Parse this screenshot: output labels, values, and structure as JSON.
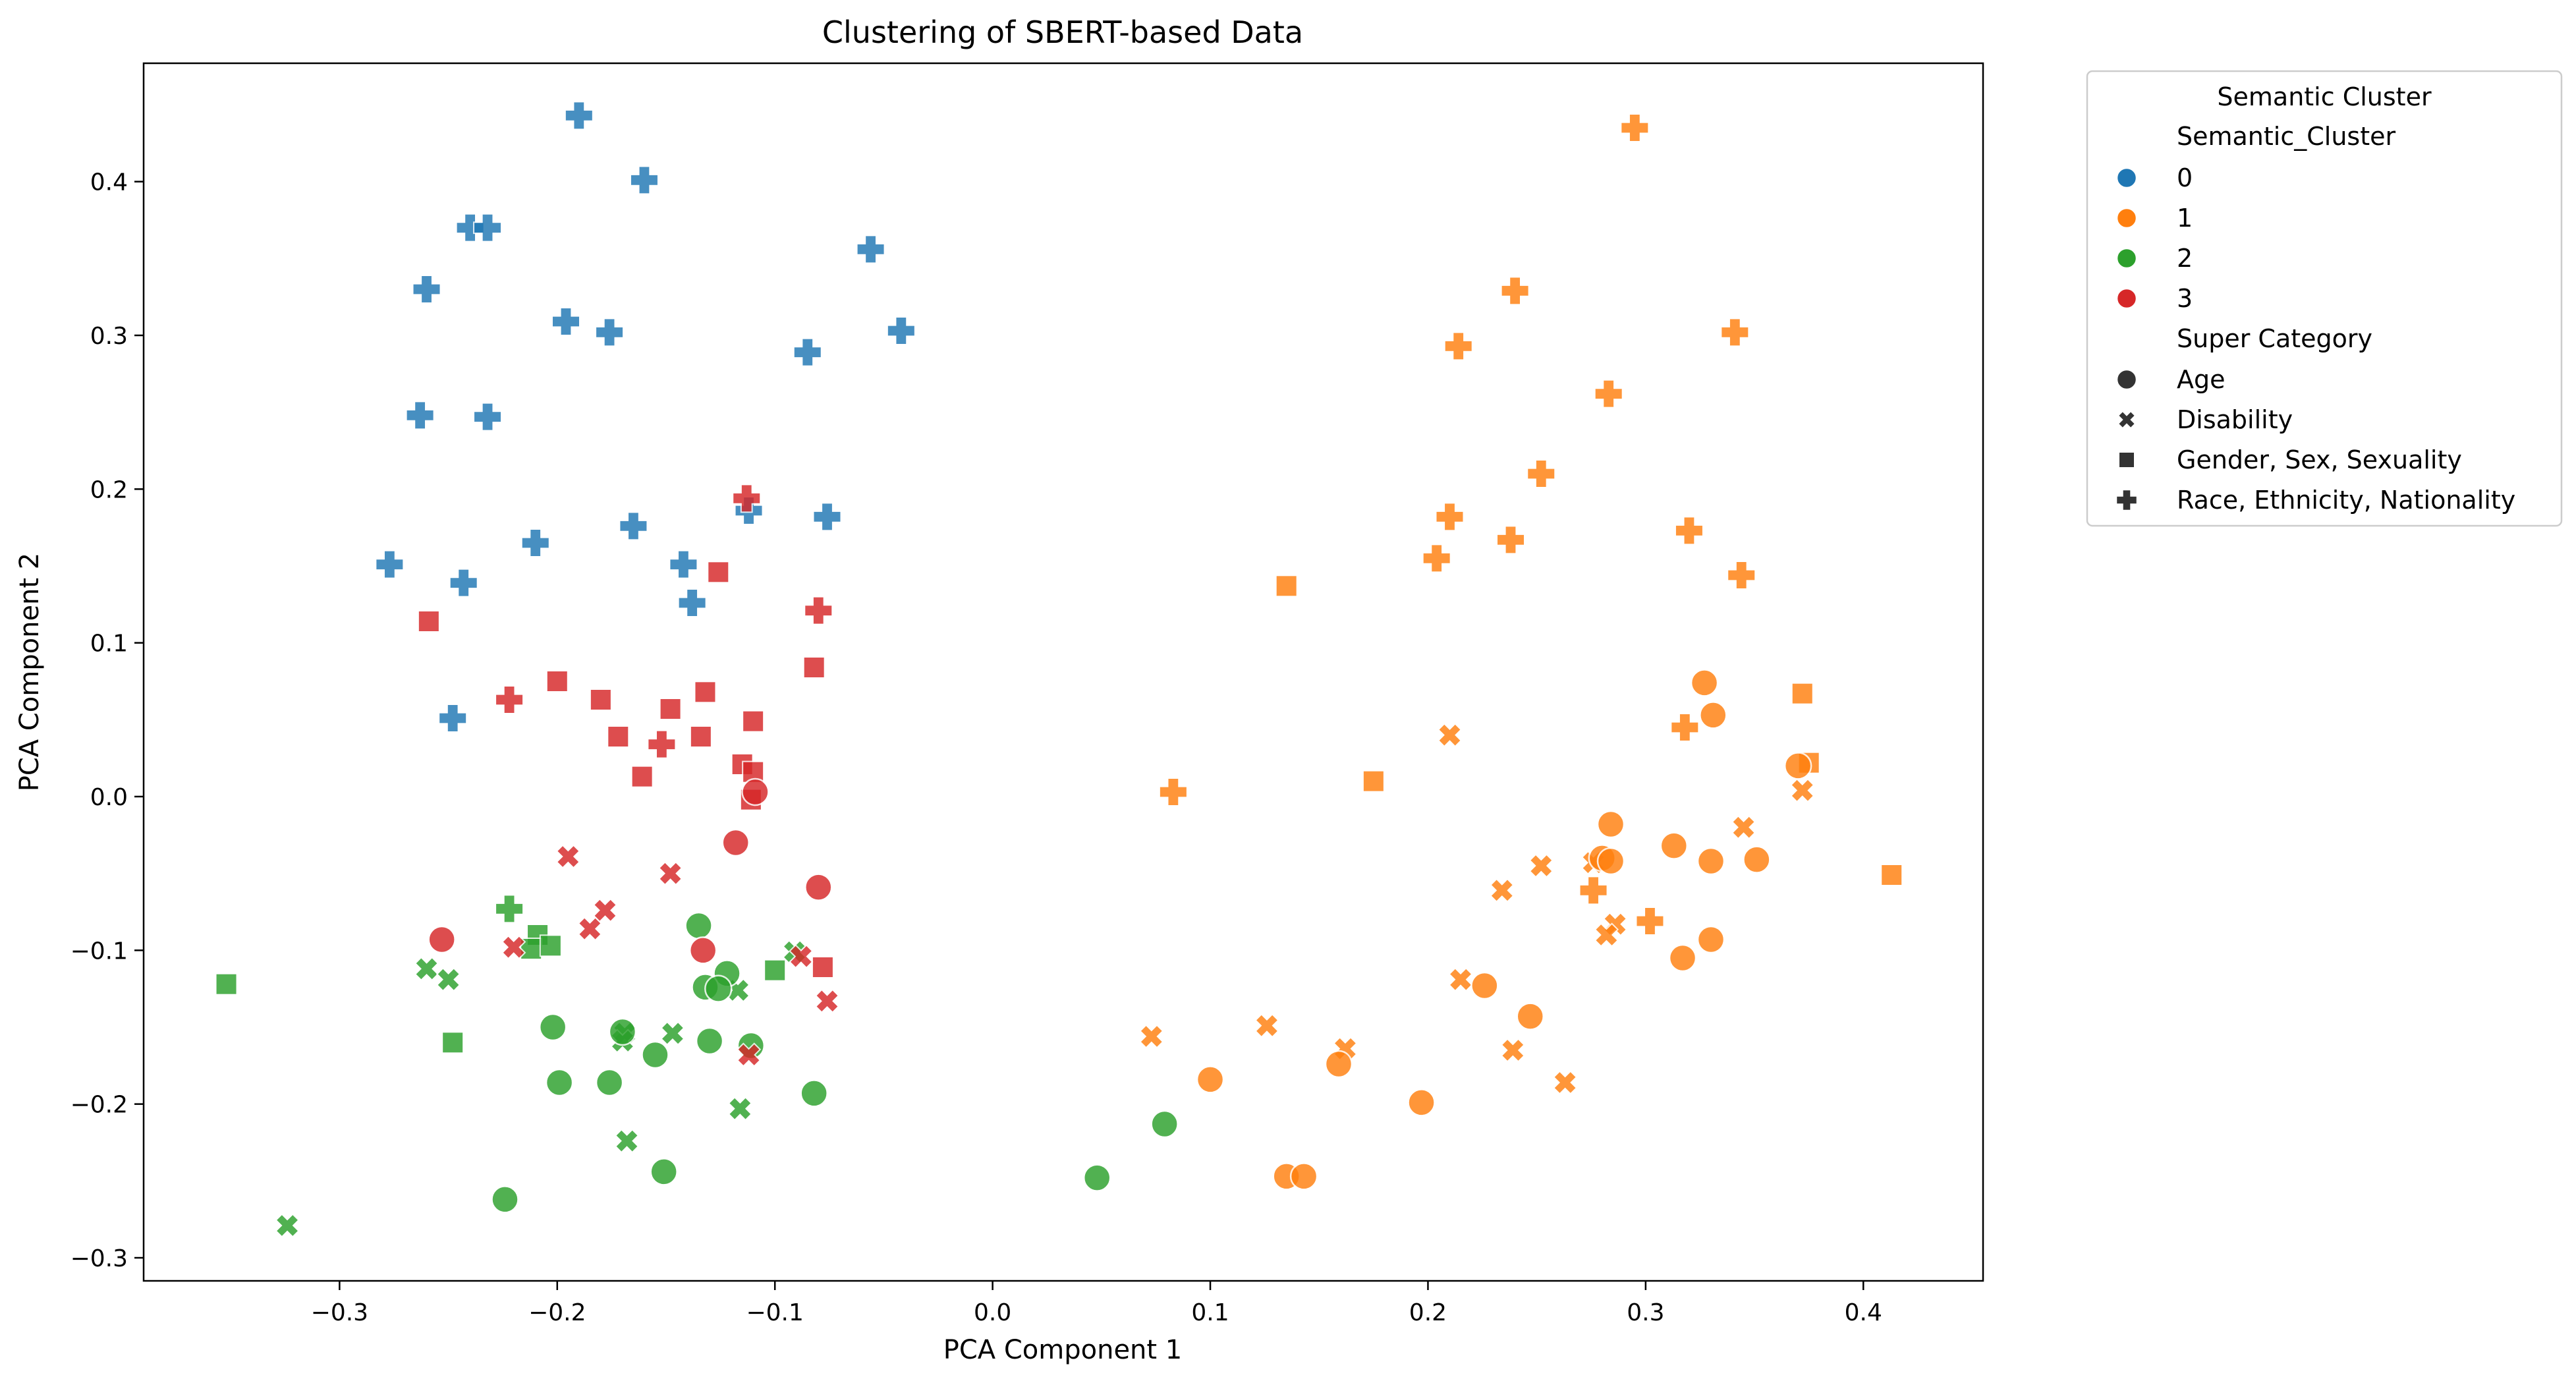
{
  "chart_data": {
    "type": "scatter",
    "title": "Clustering of SBERT-based Data",
    "xlabel": "PCA Component 1",
    "ylabel": "PCA Component 2",
    "xlim": [
      -0.39,
      0.455
    ],
    "ylim": [
      -0.315,
      0.477
    ],
    "xticks": [
      -0.3,
      -0.2,
      -0.1,
      0.0,
      0.1,
      0.2,
      0.3,
      0.4
    ],
    "xtick_labels": [
      "−0.3",
      "−0.2",
      "−0.1",
      "0.0",
      "0.1",
      "0.2",
      "0.3",
      "0.4"
    ],
    "yticks": [
      -0.3,
      -0.2,
      -0.1,
      0.0,
      0.1,
      0.2,
      0.3,
      0.4
    ],
    "ytick_labels": [
      "−0.3",
      "−0.2",
      "−0.1",
      "0.0",
      "0.1",
      "0.2",
      "0.3",
      "0.4"
    ],
    "grid": false,
    "legend": {
      "position": "outside-top-right",
      "title": "Semantic Cluster",
      "hue_title": "Semantic_Cluster",
      "hue_entries": [
        {
          "label": "0",
          "color": "#1f77b4"
        },
        {
          "label": "1",
          "color": "#ff7f0e"
        },
        {
          "label": "2",
          "color": "#2ca02c"
        },
        {
          "label": "3",
          "color": "#d62728"
        }
      ],
      "style_title": "Super Category",
      "style_entries": [
        {
          "label": "Age",
          "marker": "circle"
        },
        {
          "label": "Disability",
          "marker": "x"
        },
        {
          "label": "Gender, Sex, Sexuality",
          "marker": "square"
        },
        {
          "label": "Race, Ethnicity, Nationality",
          "marker": "plus"
        }
      ]
    },
    "cluster_colors": [
      "#1f77b4",
      "#ff7f0e",
      "#2ca02c",
      "#d62728"
    ],
    "points": [
      [
        -0.19,
        0.443,
        0,
        "plus"
      ],
      [
        -0.16,
        0.401,
        0,
        "plus"
      ],
      [
        -0.24,
        0.37,
        0,
        "plus"
      ],
      [
        -0.232,
        0.37,
        0,
        "plus"
      ],
      [
        -0.056,
        0.356,
        0,
        "plus"
      ],
      [
        -0.26,
        0.33,
        0,
        "plus"
      ],
      [
        -0.196,
        0.309,
        0,
        "plus"
      ],
      [
        -0.176,
        0.302,
        0,
        "plus"
      ],
      [
        -0.042,
        0.303,
        0,
        "plus"
      ],
      [
        -0.085,
        0.289,
        0,
        "plus"
      ],
      [
        -0.263,
        0.248,
        0,
        "plus"
      ],
      [
        -0.232,
        0.247,
        0,
        "plus"
      ],
      [
        -0.21,
        0.165,
        0,
        "plus"
      ],
      [
        -0.165,
        0.176,
        0,
        "plus"
      ],
      [
        -0.112,
        0.186,
        0,
        "plus"
      ],
      [
        -0.076,
        0.182,
        0,
        "plus"
      ],
      [
        -0.277,
        0.151,
        0,
        "plus"
      ],
      [
        -0.243,
        0.139,
        0,
        "plus"
      ],
      [
        -0.142,
        0.151,
        0,
        "plus"
      ],
      [
        -0.138,
        0.126,
        0,
        "plus"
      ],
      [
        -0.248,
        0.051,
        0,
        "plus"
      ],
      [
        0.295,
        0.435,
        1,
        "plus"
      ],
      [
        0.24,
        0.329,
        1,
        "plus"
      ],
      [
        0.214,
        0.293,
        1,
        "plus"
      ],
      [
        0.341,
        0.302,
        1,
        "plus"
      ],
      [
        0.283,
        0.262,
        1,
        "plus"
      ],
      [
        0.252,
        0.21,
        1,
        "plus"
      ],
      [
        0.21,
        0.182,
        1,
        "plus"
      ],
      [
        0.238,
        0.167,
        1,
        "plus"
      ],
      [
        0.204,
        0.155,
        1,
        "plus"
      ],
      [
        0.32,
        0.173,
        1,
        "plus"
      ],
      [
        0.344,
        0.144,
        1,
        "plus"
      ],
      [
        0.318,
        0.045,
        1,
        "plus"
      ],
      [
        0.083,
        0.003,
        1,
        "plus"
      ],
      [
        0.276,
        -0.061,
        1,
        "plus"
      ],
      [
        0.302,
        -0.081,
        1,
        "plus"
      ],
      [
        0.135,
        0.137,
        1,
        "square"
      ],
      [
        0.175,
        0.01,
        1,
        "square"
      ],
      [
        0.372,
        0.067,
        1,
        "square"
      ],
      [
        0.375,
        0.022,
        1,
        "square"
      ],
      [
        0.413,
        -0.051,
        1,
        "square"
      ],
      [
        0.21,
        0.04,
        1,
        "x"
      ],
      [
        0.345,
        -0.02,
        1,
        "x"
      ],
      [
        0.372,
        0.004,
        1,
        "x"
      ],
      [
        0.252,
        -0.045,
        1,
        "x"
      ],
      [
        0.276,
        -0.043,
        1,
        "x"
      ],
      [
        0.234,
        -0.061,
        1,
        "x"
      ],
      [
        0.286,
        -0.083,
        1,
        "x"
      ],
      [
        0.282,
        -0.09,
        1,
        "x"
      ],
      [
        0.215,
        -0.119,
        1,
        "x"
      ],
      [
        0.073,
        -0.156,
        1,
        "x"
      ],
      [
        0.126,
        -0.149,
        1,
        "x"
      ],
      [
        0.162,
        -0.164,
        1,
        "x"
      ],
      [
        0.239,
        -0.165,
        1,
        "x"
      ],
      [
        0.263,
        -0.186,
        1,
        "x"
      ],
      [
        0.327,
        0.074,
        1,
        "circle"
      ],
      [
        0.331,
        0.053,
        1,
        "circle"
      ],
      [
        0.37,
        0.02,
        1,
        "circle"
      ],
      [
        0.284,
        -0.018,
        1,
        "circle"
      ],
      [
        0.313,
        -0.032,
        1,
        "circle"
      ],
      [
        0.28,
        -0.04,
        1,
        "circle"
      ],
      [
        0.284,
        -0.042,
        1,
        "circle"
      ],
      [
        0.33,
        -0.042,
        1,
        "circle"
      ],
      [
        0.351,
        -0.041,
        1,
        "circle"
      ],
      [
        0.33,
        -0.093,
        1,
        "circle"
      ],
      [
        0.317,
        -0.105,
        1,
        "circle"
      ],
      [
        0.226,
        -0.123,
        1,
        "circle"
      ],
      [
        0.247,
        -0.143,
        1,
        "circle"
      ],
      [
        0.159,
        -0.174,
        1,
        "circle"
      ],
      [
        0.1,
        -0.184,
        1,
        "circle"
      ],
      [
        0.197,
        -0.199,
        1,
        "circle"
      ],
      [
        0.135,
        -0.247,
        1,
        "circle"
      ],
      [
        0.143,
        -0.247,
        1,
        "circle"
      ],
      [
        -0.222,
        -0.073,
        2,
        "plus"
      ],
      [
        -0.352,
        -0.122,
        2,
        "square"
      ],
      [
        -0.209,
        -0.09,
        2,
        "square"
      ],
      [
        -0.212,
        -0.099,
        2,
        "square"
      ],
      [
        -0.203,
        -0.097,
        2,
        "square"
      ],
      [
        -0.1,
        -0.113,
        2,
        "square"
      ],
      [
        -0.248,
        -0.16,
        2,
        "square"
      ],
      [
        -0.26,
        -0.112,
        2,
        "x"
      ],
      [
        -0.25,
        -0.119,
        2,
        "x"
      ],
      [
        -0.091,
        -0.101,
        2,
        "x"
      ],
      [
        -0.117,
        -0.126,
        2,
        "x"
      ],
      [
        -0.169,
        -0.154,
        2,
        "x"
      ],
      [
        -0.17,
        -0.159,
        2,
        "x"
      ],
      [
        -0.147,
        -0.154,
        2,
        "x"
      ],
      [
        -0.116,
        -0.203,
        2,
        "x"
      ],
      [
        -0.168,
        -0.224,
        2,
        "x"
      ],
      [
        -0.324,
        -0.279,
        2,
        "x"
      ],
      [
        -0.135,
        -0.084,
        2,
        "circle"
      ],
      [
        -0.122,
        -0.115,
        2,
        "circle"
      ],
      [
        -0.132,
        -0.124,
        2,
        "circle"
      ],
      [
        -0.126,
        -0.125,
        2,
        "circle"
      ],
      [
        -0.202,
        -0.15,
        2,
        "circle"
      ],
      [
        -0.17,
        -0.153,
        2,
        "circle"
      ],
      [
        -0.13,
        -0.159,
        2,
        "circle"
      ],
      [
        -0.111,
        -0.162,
        2,
        "circle"
      ],
      [
        -0.155,
        -0.168,
        2,
        "circle"
      ],
      [
        -0.199,
        -0.186,
        2,
        "circle"
      ],
      [
        -0.176,
        -0.186,
        2,
        "circle"
      ],
      [
        -0.082,
        -0.193,
        2,
        "circle"
      ],
      [
        0.079,
        -0.213,
        2,
        "circle"
      ],
      [
        0.048,
        -0.248,
        2,
        "circle"
      ],
      [
        -0.151,
        -0.244,
        2,
        "circle"
      ],
      [
        -0.224,
        -0.262,
        2,
        "circle"
      ],
      [
        -0.113,
        0.194,
        3,
        "plus"
      ],
      [
        -0.08,
        0.121,
        3,
        "plus"
      ],
      [
        -0.222,
        0.063,
        3,
        "plus"
      ],
      [
        -0.152,
        0.034,
        3,
        "plus"
      ],
      [
        -0.259,
        0.114,
        3,
        "square"
      ],
      [
        -0.126,
        0.146,
        3,
        "square"
      ],
      [
        -0.082,
        0.084,
        3,
        "square"
      ],
      [
        -0.2,
        0.075,
        3,
        "square"
      ],
      [
        -0.18,
        0.063,
        3,
        "square"
      ],
      [
        -0.132,
        0.068,
        3,
        "square"
      ],
      [
        -0.148,
        0.057,
        3,
        "square"
      ],
      [
        -0.11,
        0.049,
        3,
        "square"
      ],
      [
        -0.172,
        0.039,
        3,
        "square"
      ],
      [
        -0.134,
        0.039,
        3,
        "square"
      ],
      [
        -0.115,
        0.021,
        3,
        "square"
      ],
      [
        -0.11,
        0.016,
        3,
        "square"
      ],
      [
        -0.161,
        0.013,
        3,
        "square"
      ],
      [
        -0.111,
        -0.002,
        3,
        "square"
      ],
      [
        -0.078,
        -0.111,
        3,
        "square"
      ],
      [
        -0.195,
        -0.039,
        3,
        "x"
      ],
      [
        -0.148,
        -0.05,
        3,
        "x"
      ],
      [
        -0.178,
        -0.074,
        3,
        "x"
      ],
      [
        -0.185,
        -0.086,
        3,
        "x"
      ],
      [
        -0.22,
        -0.098,
        3,
        "x"
      ],
      [
        -0.088,
        -0.104,
        3,
        "x"
      ],
      [
        -0.076,
        -0.133,
        3,
        "x"
      ],
      [
        -0.112,
        -0.168,
        3,
        "x"
      ],
      [
        -0.109,
        0.003,
        3,
        "circle"
      ],
      [
        -0.118,
        -0.03,
        3,
        "circle"
      ],
      [
        -0.08,
        -0.059,
        3,
        "circle"
      ],
      [
        -0.253,
        -0.093,
        3,
        "circle"
      ],
      [
        -0.133,
        -0.1,
        3,
        "circle"
      ]
    ]
  }
}
